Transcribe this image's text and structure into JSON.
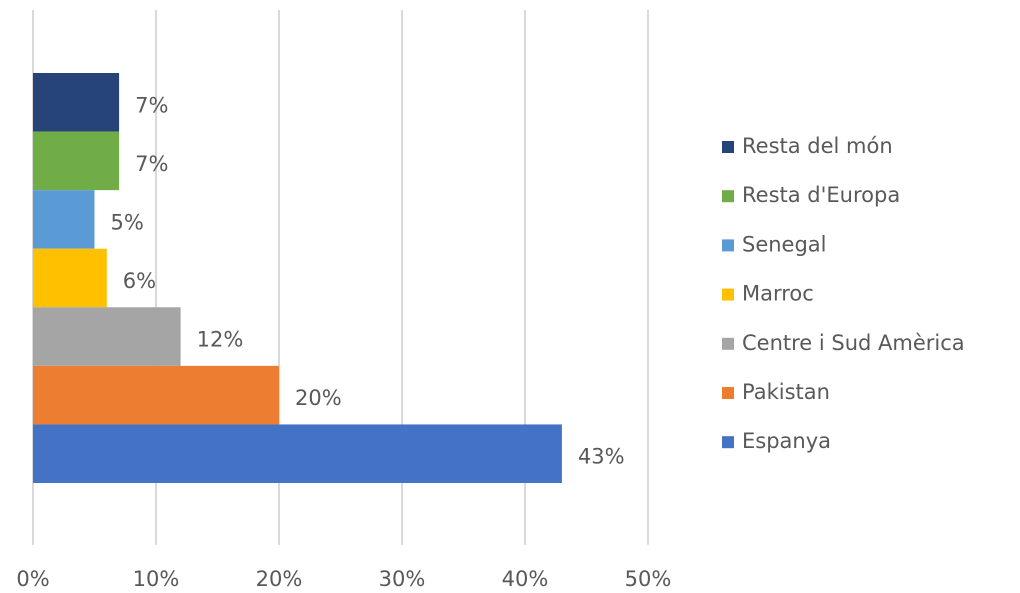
{
  "chart_data": {
    "type": "bar",
    "orientation": "horizontal",
    "series": [
      {
        "name": "Resta del món",
        "color": "#264478",
        "values": [
          7
        ],
        "value_labels": [
          "7%"
        ]
      },
      {
        "name": "Resta d'Europa",
        "color": "#70ad47",
        "values": [
          7
        ],
        "value_labels": [
          "7%"
        ]
      },
      {
        "name": "Senegal",
        "color": "#5b9bd5",
        "values": [
          5
        ],
        "value_labels": [
          "5%"
        ]
      },
      {
        "name": "Marroc",
        "color": "#ffc000",
        "values": [
          6
        ],
        "value_labels": [
          "6%"
        ]
      },
      {
        "name": "Centre i Sud Amèrica",
        "color": "#a5a5a5",
        "values": [
          12
        ],
        "value_labels": [
          "12%"
        ]
      },
      {
        "name": "Pakistan",
        "color": "#ed7d31",
        "values": [
          20
        ],
        "value_labels": [
          "20%"
        ]
      },
      {
        "name": "Espanya",
        "color": "#4472c4",
        "values": [
          43
        ],
        "value_labels": [
          "43%"
        ]
      }
    ],
    "xlim": [
      0,
      50
    ],
    "xticks": [
      {
        "value": 0,
        "label": "0%"
      },
      {
        "value": 10,
        "label": "10%"
      },
      {
        "value": 20,
        "label": "20%"
      },
      {
        "value": 30,
        "label": "30%"
      },
      {
        "value": 40,
        "label": "40%"
      },
      {
        "value": 50,
        "label": "50%"
      }
    ],
    "grid": true,
    "legend": "right"
  }
}
